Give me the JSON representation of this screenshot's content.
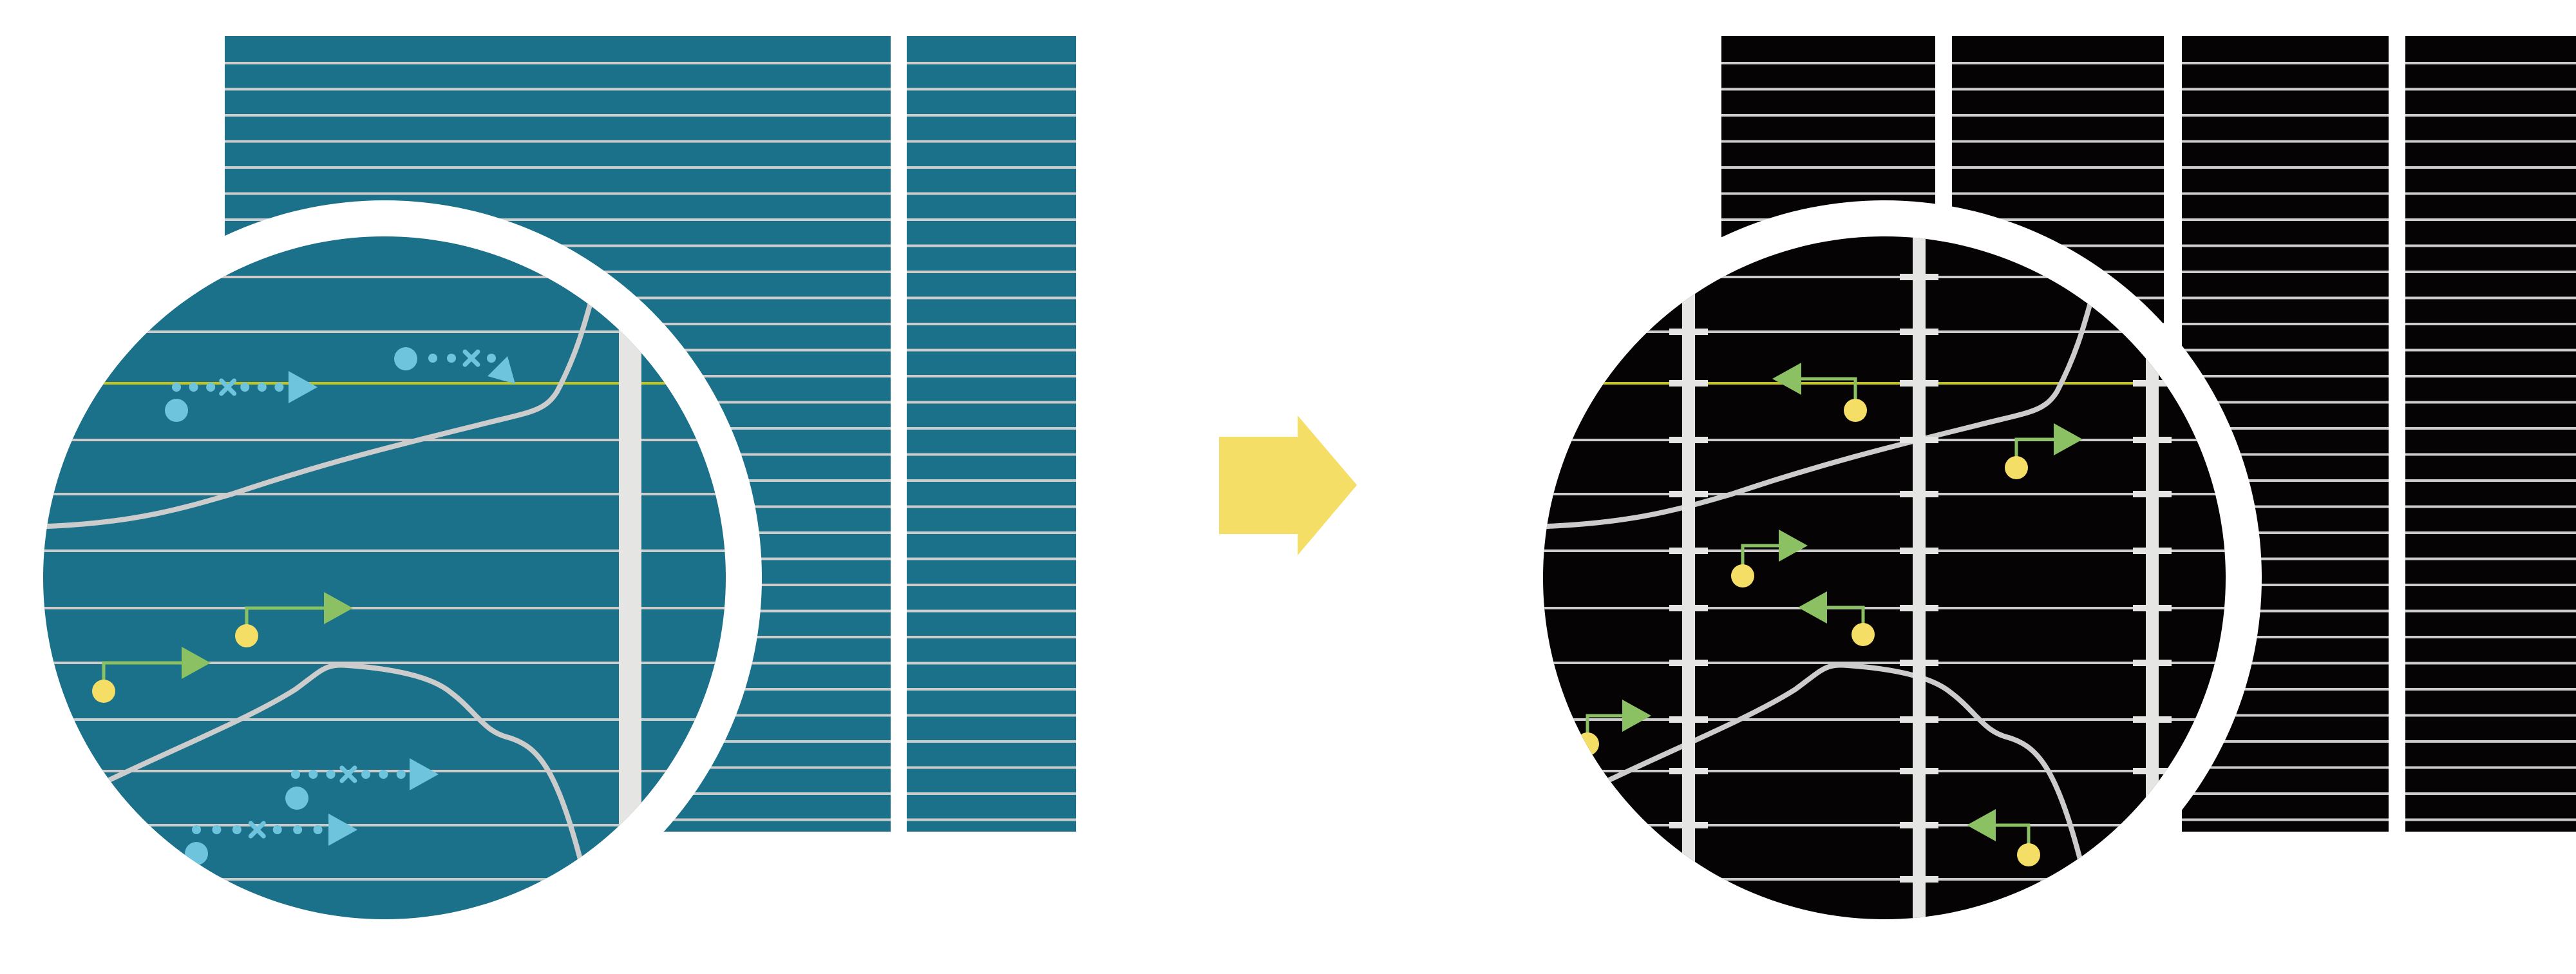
{
  "colors": {
    "background": "#ffffff",
    "left_panel": "#1b7189",
    "right_panel": "#050303",
    "grid_line": "#cccccc",
    "divider": "#e5e5e3",
    "highlight_line": "#c4c41a",
    "blue_marker": "#6ec4dc",
    "green_arrow": "#8bc163",
    "yellow_dot": "#f5de66",
    "transition_arrow": "#f5de66"
  },
  "icons": {
    "transition": "right-arrow-icon",
    "blue_marker": "dotted-arrow-icon",
    "green_marker": "pin-arrow-icon"
  },
  "left": {
    "blue_markers": [
      {
        "dir": "right",
        "crossed": true
      },
      {
        "dir": "down-right",
        "crossed": true
      },
      {
        "dir": "right",
        "crossed": true
      },
      {
        "dir": "right",
        "crossed": true
      }
    ],
    "green_markers": [
      {
        "dir": "right"
      },
      {
        "dir": "right"
      }
    ]
  },
  "right": {
    "green_markers": [
      {
        "dir": "left"
      },
      {
        "dir": "right"
      },
      {
        "dir": "right"
      },
      {
        "dir": "left"
      },
      {
        "dir": "right"
      },
      {
        "dir": "left"
      }
    ]
  }
}
